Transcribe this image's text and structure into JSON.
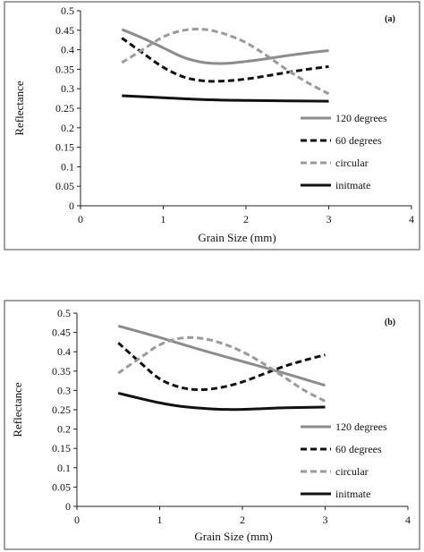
{
  "chart_data": [
    {
      "type": "line",
      "title": "(a)",
      "xlabel": "Grain Size (mm)",
      "ylabel": "Reflectance",
      "xlim": [
        0,
        4
      ],
      "ylim": [
        0,
        0.5
      ],
      "x_ticks": [
        "0",
        "1",
        "2",
        "3",
        "4"
      ],
      "y_ticks": [
        "0",
        "0.05",
        "0.1",
        "0.15",
        "0.2",
        "0.25",
        "0.3",
        "0.35",
        "0.4",
        "0.45",
        "0.5"
      ],
      "grid": false,
      "legend_position": "bottom-right",
      "series": [
        {
          "name": "120 degrees",
          "color": "#8c8c8c",
          "dash": "solid",
          "x": [
            0.5,
            0.75,
            1.0,
            1.25,
            1.5,
            1.75,
            2.0,
            2.25,
            2.5,
            2.75,
            3.0
          ],
          "y": [
            0.452,
            0.43,
            0.405,
            0.38,
            0.367,
            0.365,
            0.37,
            0.377,
            0.385,
            0.392,
            0.398
          ]
        },
        {
          "name": "60 degrees",
          "color": "#111111",
          "dash": "dashed",
          "x": [
            0.5,
            0.75,
            1.0,
            1.25,
            1.5,
            1.75,
            2.0,
            2.25,
            2.5,
            2.75,
            3.0
          ],
          "y": [
            0.43,
            0.392,
            0.355,
            0.33,
            0.32,
            0.32,
            0.325,
            0.333,
            0.342,
            0.35,
            0.357
          ]
        },
        {
          "name": "circular",
          "color": "#9a9a9a",
          "dash": "dashed",
          "x": [
            0.5,
            0.75,
            1.0,
            1.25,
            1.5,
            1.75,
            2.0,
            2.25,
            2.5,
            2.75,
            3.0
          ],
          "y": [
            0.367,
            0.4,
            0.433,
            0.45,
            0.452,
            0.44,
            0.418,
            0.385,
            0.348,
            0.315,
            0.287
          ]
        },
        {
          "name": "initmate",
          "color": "#111111",
          "dash": "solid",
          "x": [
            0.5,
            1.0,
            1.5,
            2.0,
            2.5,
            3.0
          ],
          "y": [
            0.282,
            0.277,
            0.272,
            0.27,
            0.269,
            0.268
          ]
        }
      ]
    },
    {
      "type": "line",
      "title": "(b)",
      "xlabel": "Grain Size (mm)",
      "ylabel": "Reflectance",
      "xlim": [
        0,
        4
      ],
      "ylim": [
        0,
        0.5
      ],
      "x_ticks": [
        "0",
        "1",
        "2",
        "3",
        "4"
      ],
      "y_ticks": [
        "0",
        "0.05",
        "0.1",
        "0.15",
        "0.2",
        "0.25",
        "0.3",
        "0.35",
        "0.4",
        "0.45",
        "0.5"
      ],
      "grid": false,
      "legend_position": "bottom-right",
      "series": [
        {
          "name": "120 degrees",
          "color": "#8c8c8c",
          "dash": "solid",
          "x": [
            0.5,
            1.0,
            1.5,
            2.0,
            2.5,
            3.0
          ],
          "y": [
            0.467,
            0.437,
            0.405,
            0.375,
            0.345,
            0.313
          ]
        },
        {
          "name": "60 degrees",
          "color": "#111111",
          "dash": "dashed",
          "x": [
            0.5,
            0.75,
            1.0,
            1.25,
            1.5,
            1.75,
            2.0,
            2.25,
            2.5,
            2.75,
            3.0
          ],
          "y": [
            0.423,
            0.375,
            0.33,
            0.308,
            0.302,
            0.308,
            0.322,
            0.342,
            0.362,
            0.378,
            0.392
          ]
        },
        {
          "name": "circular",
          "color": "#9a9a9a",
          "dash": "dashed",
          "x": [
            0.5,
            0.75,
            1.0,
            1.25,
            1.5,
            1.75,
            2.0,
            2.25,
            2.5,
            2.75,
            3.0
          ],
          "y": [
            0.345,
            0.382,
            0.418,
            0.435,
            0.435,
            0.422,
            0.4,
            0.37,
            0.335,
            0.3,
            0.272
          ]
        },
        {
          "name": "initmate",
          "color": "#111111",
          "dash": "solid",
          "x": [
            0.5,
            0.75,
            1.0,
            1.25,
            1.5,
            1.75,
            2.0,
            2.25,
            2.5,
            2.75,
            3.0
          ],
          "y": [
            0.293,
            0.28,
            0.268,
            0.259,
            0.254,
            0.251,
            0.251,
            0.253,
            0.255,
            0.256,
            0.257
          ]
        }
      ]
    }
  ]
}
